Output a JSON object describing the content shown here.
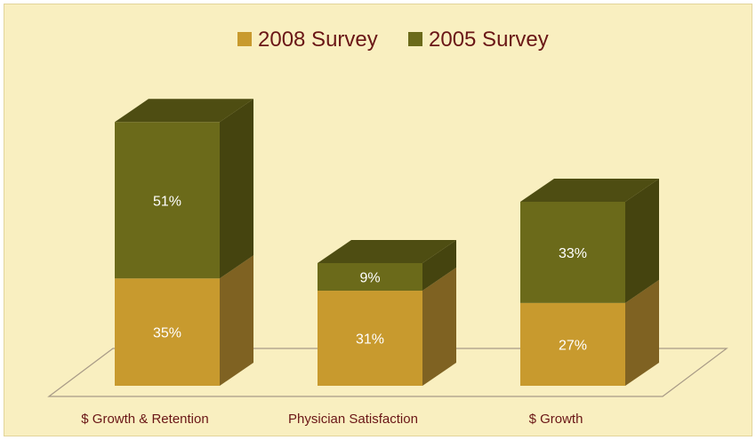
{
  "chart_data": {
    "type": "bar",
    "stacked": true,
    "three_d": true,
    "categories": [
      "$ Growth & Retention",
      "Physician Satisfaction",
      "$ Growth"
    ],
    "series": [
      {
        "name": "2008 Survey",
        "values": [
          35,
          31,
          27
        ],
        "labels": [
          "35%",
          "31%",
          "27%"
        ],
        "color": "#c89a2e",
        "side_color": "#7f6222",
        "top_color": "#d9ae44"
      },
      {
        "name": "2005 Survey",
        "values": [
          51,
          9,
          33
        ],
        "labels": [
          "51%",
          "9%",
          "33%"
        ],
        "color": "#6b6a1a",
        "side_color": "#45440f",
        "top_color": "#4e4d12"
      }
    ],
    "legend_position": "top",
    "grid": false,
    "background": "#f9efc0",
    "text_color": "#6a1616",
    "floor_color": "#a89a86"
  }
}
